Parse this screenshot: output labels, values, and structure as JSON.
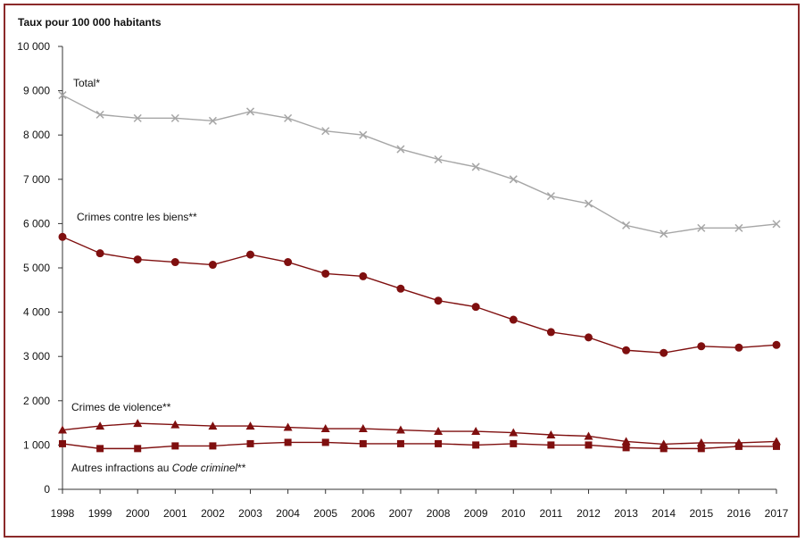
{
  "chart_data": {
    "type": "line",
    "y_title": "Taux pour 100 000 habitants",
    "x": [
      "1998",
      "1999",
      "2000",
      "2001",
      "2002",
      "2003",
      "2004",
      "2005",
      "2006",
      "2007",
      "2008",
      "2009",
      "2010",
      "2011",
      "2012",
      "2013",
      "2014",
      "2015",
      "2016",
      "2017"
    ],
    "ylim": [
      0,
      10000
    ],
    "yticks": [
      {
        "v": 0,
        "label": "0"
      },
      {
        "v": 1000,
        "label": "1 000"
      },
      {
        "v": 2000,
        "label": "2 000"
      },
      {
        "v": 3000,
        "label": "3 000"
      },
      {
        "v": 4000,
        "label": "4 000"
      },
      {
        "v": 5000,
        "label": "5 000"
      },
      {
        "v": 6000,
        "label": "6 000"
      },
      {
        "v": 7000,
        "label": "7 000"
      },
      {
        "v": 8000,
        "label": "8 000"
      },
      {
        "v": 9000,
        "label": "9 000"
      },
      {
        "v": 10000,
        "label": "10 000"
      }
    ],
    "grid": false,
    "series": [
      {
        "key": "total",
        "name": "Total*",
        "color": "#a6a6a6",
        "marker": "x",
        "values": [
          8900,
          8460,
          8380,
          8380,
          8320,
          8530,
          8380,
          8090,
          8000,
          7680,
          7450,
          7280,
          7000,
          6620,
          6450,
          5960,
          5770,
          5900,
          5900,
          5990
        ]
      },
      {
        "key": "biens",
        "name": "Crimes contre les biens**",
        "color": "#7f0f0f",
        "marker": "circle",
        "values": [
          5700,
          5330,
          5190,
          5130,
          5070,
          5300,
          5130,
          4870,
          4810,
          4530,
          4260,
          4120,
          3830,
          3550,
          3430,
          3140,
          3080,
          3230,
          3200,
          3260
        ]
      },
      {
        "key": "violence",
        "name": "Crimes de violence**",
        "color": "#7f0f0f",
        "marker": "triangle",
        "values": [
          1340,
          1430,
          1490,
          1460,
          1430,
          1430,
          1400,
          1370,
          1370,
          1340,
          1310,
          1310,
          1280,
          1230,
          1200,
          1080,
          1020,
          1050,
          1050,
          1080
        ]
      },
      {
        "key": "autres",
        "name": "Autres infractions au Code criminel**",
        "color": "#7f0f0f",
        "marker": "square",
        "values": [
          1030,
          920,
          920,
          980,
          980,
          1030,
          1060,
          1060,
          1030,
          1030,
          1030,
          1000,
          1030,
          1000,
          1000,
          940,
          920,
          920,
          970,
          970
        ]
      }
    ],
    "annotations": {
      "total": "Total*",
      "biens": "Crimes contre les biens**",
      "violence": "Crimes de violence**",
      "autres_prefix": "Autres infractions au ",
      "autres_italic": "Code criminel",
      "autres_suffix": "**"
    }
  }
}
